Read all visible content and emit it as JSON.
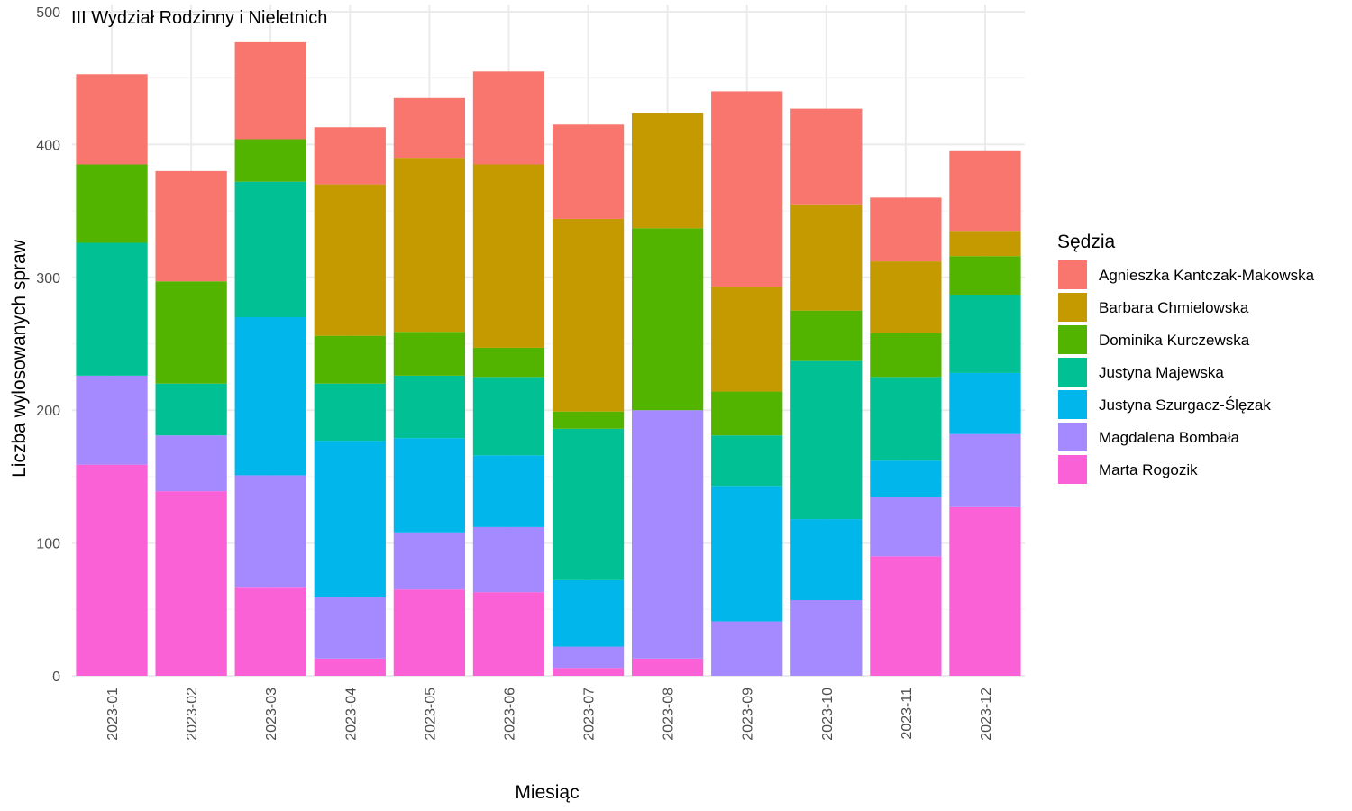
{
  "chart_data": {
    "type": "bar",
    "stacked": true,
    "title": "III Wydział Rodzinny i Nieletnich",
    "xlabel": "Miesiąc",
    "ylabel": "Liczba wylosowanych spraw",
    "ylim": [
      0,
      500
    ],
    "yticks": [
      "0",
      "100",
      "200",
      "300",
      "400",
      "500"
    ],
    "grid": true,
    "legend_title": "Sędzia",
    "legend_position": "right",
    "categories": [
      "2023-01",
      "2023-02",
      "2023-03",
      "2023-04",
      "2023-05",
      "2023-06",
      "2023-07",
      "2023-08",
      "2023-09",
      "2023-10",
      "2023-11",
      "2023-12"
    ],
    "series": [
      {
        "name": "Agnieszka Kantczak-Makowska",
        "color": "#F8766D",
        "values": [
          68,
          83,
          73,
          43,
          45,
          70,
          71,
          0,
          147,
          72,
          48,
          60
        ]
      },
      {
        "name": "Barbara Chmielowska",
        "color": "#C49A00",
        "values": [
          0,
          0,
          0,
          114,
          131,
          138,
          145,
          87,
          79,
          80,
          54,
          19
        ]
      },
      {
        "name": "Dominika Kurczewska",
        "color": "#53B400",
        "values": [
          59,
          77,
          32,
          36,
          33,
          22,
          13,
          137,
          33,
          38,
          33,
          29
        ]
      },
      {
        "name": "Justyna Majewska",
        "color": "#00C094",
        "values": [
          100,
          39,
          102,
          43,
          47,
          59,
          114,
          0,
          38,
          119,
          63,
          59
        ]
      },
      {
        "name": "Justyna Szurgacz-Ślęzak",
        "color": "#00B6EB",
        "values": [
          0,
          0,
          119,
          118,
          71,
          54,
          50,
          0,
          102,
          61,
          27,
          46
        ]
      },
      {
        "name": "Magdalena Bombała",
        "color": "#A58AFF",
        "values": [
          67,
          42,
          84,
          46,
          43,
          49,
          16,
          187,
          41,
          57,
          45,
          55
        ]
      },
      {
        "name": "Marta Rogozik",
        "color": "#FB61D7",
        "values": [
          159,
          139,
          67,
          13,
          65,
          63,
          6,
          13,
          0,
          0,
          90,
          127
        ]
      }
    ]
  }
}
